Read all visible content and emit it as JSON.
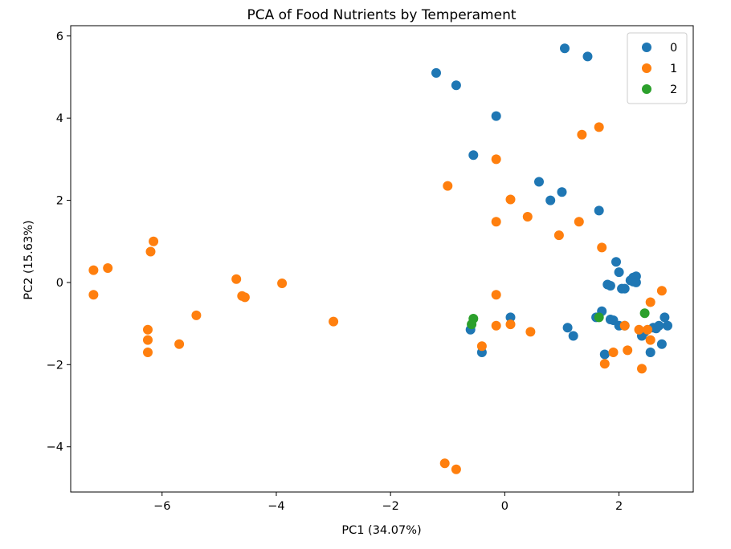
{
  "chart_data": {
    "type": "scatter",
    "title": "PCA of Food Nutrients by Temperament",
    "xlabel": "PC1 (34.07%)",
    "ylabel": "PC2 (15.63%)",
    "xlim": [
      -7.6,
      3.3
    ],
    "ylim": [
      -5.1,
      6.25
    ],
    "xticks": [
      -6,
      -4,
      -2,
      0,
      2
    ],
    "xtick_labels": [
      "−6",
      "−4",
      "−2",
      "0",
      "2"
    ],
    "yticks": [
      -4,
      -2,
      0,
      2,
      4,
      6
    ],
    "ytick_labels": [
      "−4",
      "−2",
      "0",
      "2",
      "4",
      "6"
    ],
    "grid": false,
    "legend_position": "top-right",
    "series": [
      {
        "name": "0",
        "color": "#1f77b4",
        "points": [
          [
            -1.2,
            5.1
          ],
          [
            -0.85,
            4.8
          ],
          [
            -0.15,
            4.05
          ],
          [
            -0.55,
            3.1
          ],
          [
            1.05,
            5.7
          ],
          [
            1.45,
            5.5
          ],
          [
            0.6,
            2.45
          ],
          [
            0.8,
            2.0
          ],
          [
            1.0,
            2.2
          ],
          [
            1.65,
            1.75
          ],
          [
            1.95,
            0.5
          ],
          [
            2.0,
            0.25
          ],
          [
            1.8,
            -0.05
          ],
          [
            1.85,
            -0.08
          ],
          [
            2.05,
            -0.15
          ],
          [
            2.1,
            -0.15
          ],
          [
            2.2,
            0.05
          ],
          [
            2.25,
            0.12
          ],
          [
            2.3,
            0.15
          ],
          [
            2.25,
            0.02
          ],
          [
            2.3,
            0.0
          ],
          [
            1.7,
            -0.7
          ],
          [
            1.6,
            -0.85
          ],
          [
            1.85,
            -0.9
          ],
          [
            1.9,
            -0.92
          ],
          [
            2.0,
            -1.05
          ],
          [
            2.1,
            -1.05
          ],
          [
            2.4,
            -1.3
          ],
          [
            2.45,
            -1.2
          ],
          [
            2.6,
            -1.1
          ],
          [
            2.65,
            -1.12
          ],
          [
            2.7,
            -1.05
          ],
          [
            2.8,
            -0.85
          ],
          [
            2.85,
            -1.05
          ],
          [
            2.75,
            -1.5
          ],
          [
            2.55,
            -1.7
          ],
          [
            1.75,
            -1.75
          ],
          [
            1.1,
            -1.1
          ],
          [
            1.2,
            -1.3
          ],
          [
            0.1,
            -0.85
          ],
          [
            -0.6,
            -1.15
          ],
          [
            -0.4,
            -1.7
          ]
        ]
      },
      {
        "name": "1",
        "color": "#ff7f0e",
        "points": [
          [
            -7.2,
            0.3
          ],
          [
            -6.95,
            0.35
          ],
          [
            -7.2,
            -0.3
          ],
          [
            -6.15,
            1.0
          ],
          [
            -6.2,
            0.75
          ],
          [
            -6.25,
            -1.15
          ],
          [
            -6.25,
            -1.4
          ],
          [
            -6.25,
            -1.7
          ],
          [
            -5.7,
            -1.5
          ],
          [
            -5.4,
            -0.8
          ],
          [
            -4.7,
            0.08
          ],
          [
            -4.6,
            -0.33
          ],
          [
            -4.55,
            -0.36
          ],
          [
            -3.9,
            -0.02
          ],
          [
            -3.0,
            -0.95
          ],
          [
            -1.0,
            2.35
          ],
          [
            -0.15,
            3.0
          ],
          [
            -0.15,
            1.48
          ],
          [
            0.1,
            2.02
          ],
          [
            0.4,
            1.6
          ],
          [
            0.95,
            1.15
          ],
          [
            1.3,
            1.48
          ],
          [
            1.35,
            3.6
          ],
          [
            1.65,
            3.78
          ],
          [
            1.7,
            0.85
          ],
          [
            -0.15,
            -0.3
          ],
          [
            -0.15,
            -1.05
          ],
          [
            0.1,
            -1.02
          ],
          [
            0.45,
            -1.2
          ],
          [
            -0.4,
            -1.55
          ],
          [
            1.9,
            -1.7
          ],
          [
            1.75,
            -1.98
          ],
          [
            2.1,
            -1.05
          ],
          [
            2.15,
            -1.65
          ],
          [
            2.35,
            -1.15
          ],
          [
            2.4,
            -2.1
          ],
          [
            2.5,
            -1.15
          ],
          [
            2.55,
            -1.4
          ],
          [
            2.55,
            -0.48
          ],
          [
            2.75,
            -0.2
          ],
          [
            -1.05,
            -4.4
          ],
          [
            -0.85,
            -4.55
          ]
        ]
      },
      {
        "name": "2",
        "color": "#2ca02c",
        "points": [
          [
            -0.55,
            -0.88
          ],
          [
            -0.58,
            -1.02
          ],
          [
            1.65,
            -0.85
          ],
          [
            2.45,
            -0.75
          ]
        ]
      }
    ]
  }
}
